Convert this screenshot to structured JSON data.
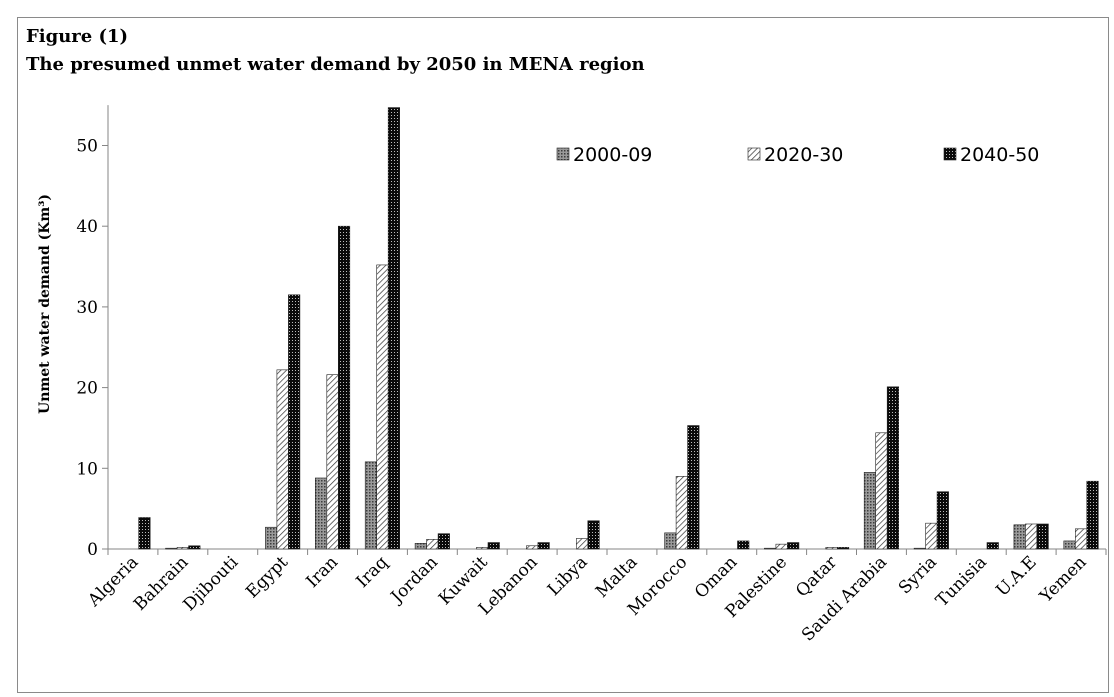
{
  "figure_label": "Figure (1)",
  "figure_title": "The presumed unmet water demand by 2050 in MENA region",
  "chart_data": {
    "type": "bar",
    "title": "The presumed unmet water demand by 2050 in MENA region",
    "xlabel": "",
    "ylabel": "Unmet water demand (Km³)",
    "ylim": [
      0,
      55
    ],
    "yticks": [
      0,
      10,
      20,
      30,
      40,
      50
    ],
    "grid": false,
    "legend_position": "top-right",
    "categories": [
      "Algeria",
      "Bahrain",
      "Djibouti",
      "Egypt",
      "Iran",
      "Iraq",
      "Jordan",
      "Kuwait",
      "Lebanon",
      "Libya",
      "Malta",
      "Morocco",
      "Oman",
      "Palestine",
      "Qatar",
      "Saudi Arabia",
      "Syria",
      "Tunisia",
      "U.A.E",
      "Yemen"
    ],
    "series": [
      {
        "name": "2000-09",
        "pattern": "dots-gray",
        "color": "#7a7a7a",
        "values": [
          0,
          0.1,
          0,
          2.7,
          8.8,
          10.8,
          0.7,
          0,
          0,
          0,
          0,
          2.0,
          0,
          0.1,
          0,
          9.5,
          0.1,
          0,
          3.0,
          1.0
        ]
      },
      {
        "name": "2020-30",
        "pattern": "hatch",
        "color": "#ffffff",
        "values": [
          0,
          0.2,
          0,
          22.2,
          21.6,
          35.2,
          1.2,
          0.2,
          0.4,
          1.3,
          0,
          9.0,
          0,
          0.6,
          0.2,
          14.4,
          3.2,
          0,
          3.1,
          2.5
        ]
      },
      {
        "name": "2040-50",
        "pattern": "dots-black",
        "color": "#111111",
        "values": [
          3.9,
          0.4,
          0,
          31.5,
          40.0,
          54.7,
          1.9,
          0.8,
          0.8,
          3.5,
          0,
          15.3,
          1.0,
          0.8,
          0.2,
          20.1,
          7.1,
          0.8,
          3.1,
          8.4
        ]
      }
    ]
  }
}
